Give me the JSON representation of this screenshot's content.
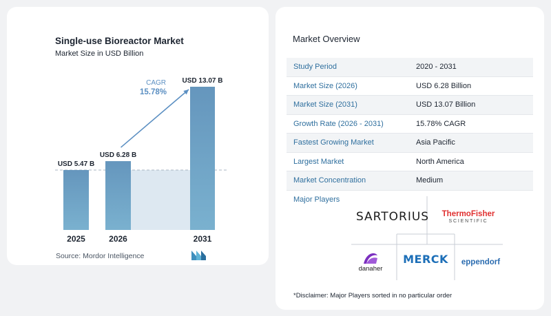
{
  "chart_data": {
    "type": "bar",
    "title": "Single-use Bioreactor Market",
    "subtitle": "Market Size in USD Billion",
    "categories": [
      "2025",
      "2026",
      "2031"
    ],
    "values": [
      5.47,
      6.28,
      13.07
    ],
    "value_labels": [
      "USD 5.47 B",
      "USD 6.28 B",
      "USD 13.07 B"
    ],
    "cagr_label": "CAGR",
    "cagr_value": "15.78%",
    "source": "Source:  Mordor Intelligence",
    "colors": {
      "bar": "#6596bd",
      "bar_light": "#7ab1cf",
      "band": "#dde8f1",
      "arrow": "#5b8fc2",
      "cagr_text": "#5b8fc2"
    }
  },
  "overview": {
    "title": "Market Overview",
    "rows": [
      {
        "key": "Study Period",
        "value": "2020 - 2031"
      },
      {
        "key": "Market Size (2026)",
        "value": "USD 6.28 Billion"
      },
      {
        "key": "Market Size (2031)",
        "value": "USD 13.07 Billion"
      },
      {
        "key": "Growth Rate (2026 - 2031)",
        "value": "15.78% CAGR"
      },
      {
        "key": "Fastest Growing Market",
        "value": "Asia Pacific"
      },
      {
        "key": "Largest Market",
        "value": "North America"
      },
      {
        "key": "Market Concentration",
        "value": "Medium"
      }
    ],
    "major_players_label": "Major Players",
    "players": {
      "sartorius": "SARTORIUS",
      "thermo_top": "ThermoFisher",
      "thermo_bottom": "SCIENTIFIC",
      "danaher": "danaher",
      "merck": "MERCK",
      "eppendorf": "eppendorf"
    },
    "disclaimer": "*Disclaimer: Major Players sorted in no particular order"
  }
}
